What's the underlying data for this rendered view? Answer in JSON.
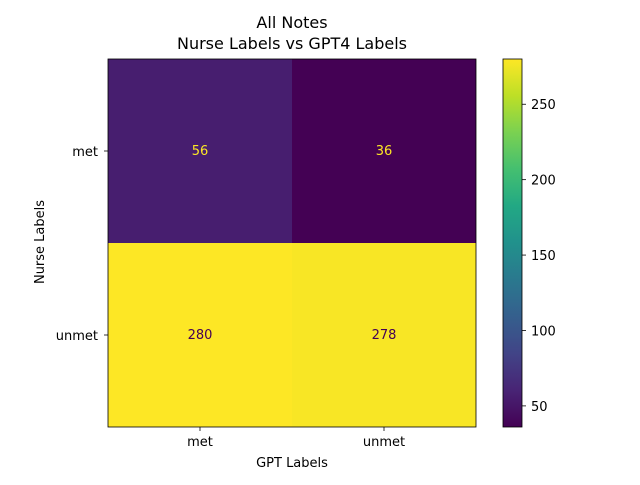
{
  "chart_data": {
    "type": "heatmap",
    "title": "All Notes",
    "subtitle": "Nurse Labels vs GPT4 Labels",
    "xlabel": "GPT Labels",
    "ylabel": "Nurse Labels",
    "x_categories": [
      "met",
      "unmet"
    ],
    "y_categories": [
      "met",
      "unmet"
    ],
    "values": [
      [
        56,
        36
      ],
      [
        280,
        278
      ]
    ],
    "colormap": "viridis",
    "colorbar": {
      "range": [
        36,
        280
      ],
      "ticks": [
        50,
        100,
        150,
        200,
        250
      ]
    },
    "grid": false,
    "legend": "colorbar right"
  }
}
